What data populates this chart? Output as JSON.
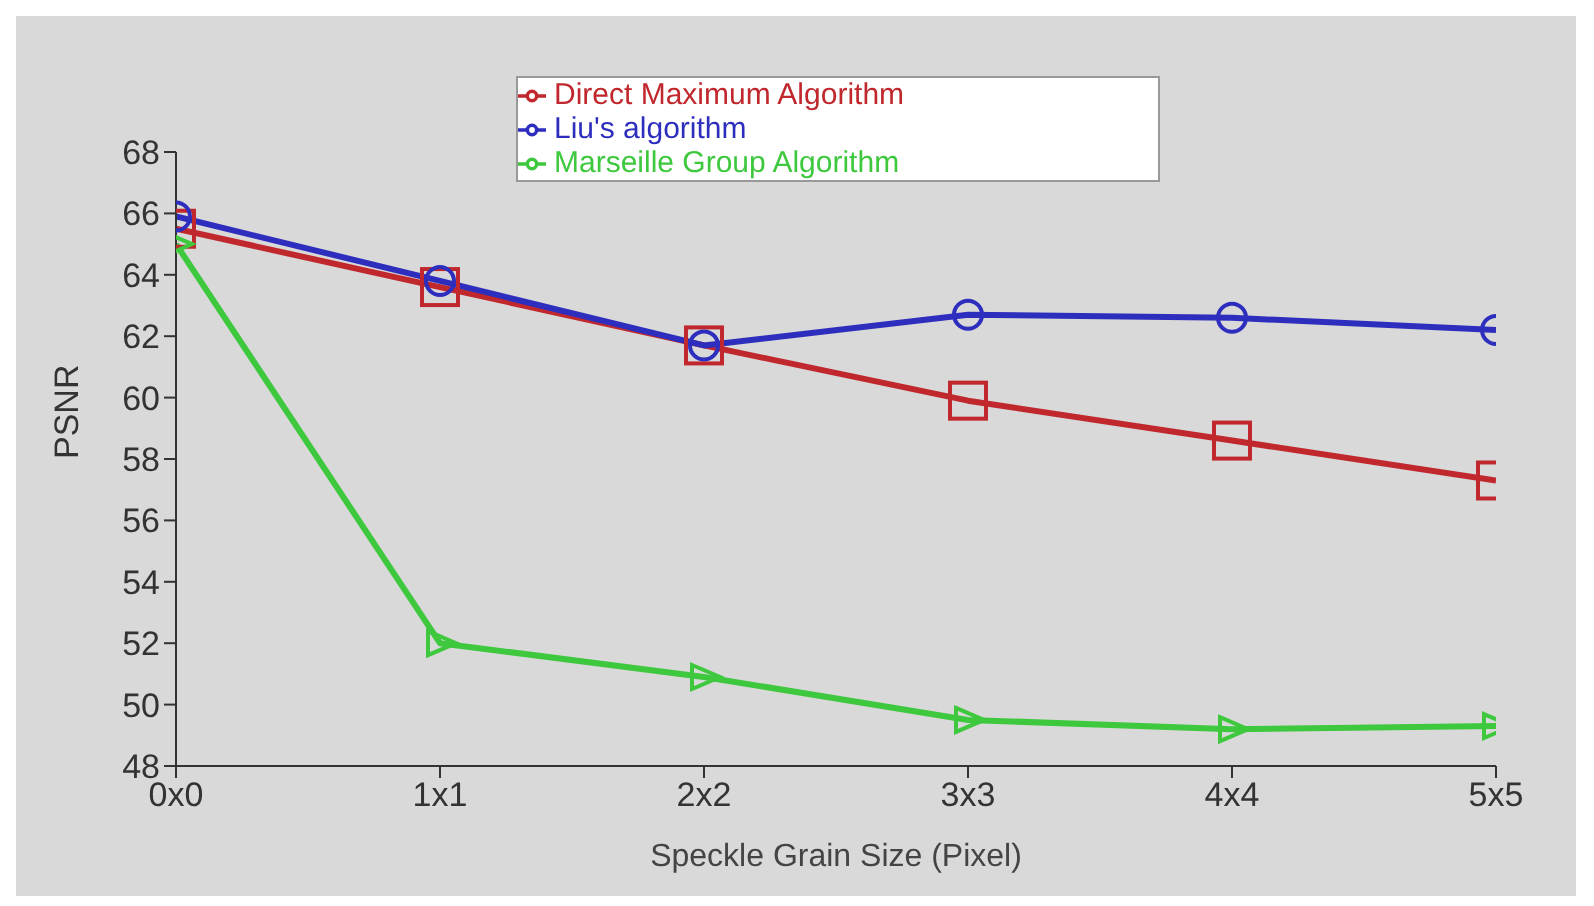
{
  "chart_data": {
    "type": "line",
    "xlabel": "Speckle Grain Size (Pixel)",
    "ylabel": "PSNR",
    "categories": [
      "0x0",
      "1x1",
      "2x2",
      "3x3",
      "4x4",
      "5x5"
    ],
    "ylim": [
      48,
      68
    ],
    "yticks": [
      48,
      50,
      52,
      54,
      56,
      58,
      60,
      62,
      64,
      66,
      68
    ],
    "grid": false,
    "legend": "top",
    "series": [
      {
        "name": "Direct Maximum Algorithm",
        "color": "#c0282d",
        "marker": "square",
        "values": [
          65.5,
          63.6,
          61.7,
          59.9,
          58.6,
          57.3
        ]
      },
      {
        "name": "Liu's algorithm",
        "color": "#2e2ebe",
        "marker": "circle",
        "values": [
          65.9,
          63.8,
          61.7,
          62.7,
          62.6,
          62.2
        ]
      },
      {
        "name": "Marseille Group Algorithm",
        "color": "#3ec83e",
        "marker": "triangle",
        "values": [
          65.0,
          52.0,
          50.9,
          49.5,
          49.2,
          49.3
        ]
      }
    ]
  }
}
